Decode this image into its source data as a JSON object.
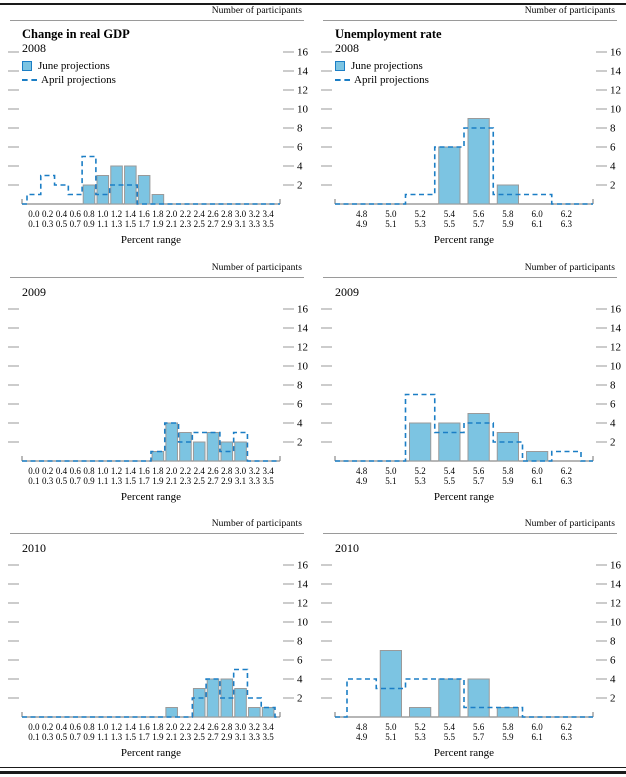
{
  "colors": {
    "bar_fill": "#7cc4e2",
    "bar_stroke": "#9a9a9a",
    "april_blue": "#1b7ec5",
    "axis_gray": "#8a8a8a",
    "tick_gray": "#999999"
  },
  "chart_data": [
    {
      "type": "bar",
      "id": "gdp-2008",
      "title": "Change in real GDP",
      "year": "2008",
      "top_label": "Number of participants",
      "xlabel": "Percent range",
      "legend": [
        "June projections",
        "April projections"
      ],
      "ylim": [
        0,
        17
      ],
      "yticks": [
        2,
        4,
        6,
        8,
        10,
        12,
        14,
        16
      ],
      "bins_top": [
        "0.0",
        "0.2",
        "0.4",
        "0.6",
        "0.8",
        "1.0",
        "1.2",
        "1.4",
        "1.6",
        "1.8",
        "2.0",
        "2.2",
        "2.4",
        "2.6",
        "2.8",
        "3.0",
        "3.2",
        "3.4"
      ],
      "bins_bottom": [
        "0.1",
        "0.3",
        "0.5",
        "0.7",
        "0.9",
        "1.1",
        "1.3",
        "1.5",
        "1.7",
        "1.9",
        "2.1",
        "2.3",
        "2.5",
        "2.7",
        "2.9",
        "3.1",
        "3.3",
        "3.5"
      ],
      "series": [
        {
          "name": "June projections",
          "style": "bar",
          "values": [
            0,
            0,
            0,
            0,
            2,
            3,
            4,
            4,
            3,
            1,
            0,
            0,
            0,
            0,
            0,
            0,
            0,
            0
          ]
        },
        {
          "name": "April projections",
          "style": "dashed-step",
          "values": [
            1,
            3,
            2,
            1,
            5,
            1,
            2,
            2,
            0,
            0,
            0,
            0,
            0,
            0,
            0,
            0,
            0,
            0
          ]
        }
      ]
    },
    {
      "type": "bar",
      "id": "unemployment-2008",
      "title": "Unemployment rate",
      "year": "2008",
      "top_label": "Number of participants",
      "xlabel": "Percent range",
      "legend": [
        "June projections",
        "April projections"
      ],
      "ylim": [
        0,
        17
      ],
      "yticks": [
        2,
        4,
        6,
        8,
        10,
        12,
        14,
        16
      ],
      "bins_top": [
        "4.8",
        "5.0",
        "5.2",
        "5.4",
        "5.6",
        "5.8",
        "6.0",
        "6.2"
      ],
      "bins_bottom": [
        "4.9",
        "5.1",
        "5.3",
        "5.5",
        "5.7",
        "5.9",
        "6.1",
        "6.3"
      ],
      "series": [
        {
          "name": "June projections",
          "style": "bar",
          "values": [
            0,
            0,
            0,
            6,
            9,
            2,
            0,
            0
          ]
        },
        {
          "name": "April projections",
          "style": "dashed-step",
          "values": [
            0,
            0,
            1,
            6,
            8,
            1,
            1,
            0
          ]
        }
      ]
    },
    {
      "type": "bar",
      "id": "gdp-2009",
      "title": "",
      "year": "2009",
      "top_label": "Number of participants",
      "xlabel": "Percent range",
      "legend": [],
      "ylim": [
        0,
        17
      ],
      "yticks": [
        2,
        4,
        6,
        8,
        10,
        12,
        14,
        16
      ],
      "bins_top": [
        "0.0",
        "0.2",
        "0.4",
        "0.6",
        "0.8",
        "1.0",
        "1.2",
        "1.4",
        "1.6",
        "1.8",
        "2.0",
        "2.2",
        "2.4",
        "2.6",
        "2.8",
        "3.0",
        "3.2",
        "3.4"
      ],
      "bins_bottom": [
        "0.1",
        "0.3",
        "0.5",
        "0.7",
        "0.9",
        "1.1",
        "1.3",
        "1.5",
        "1.7",
        "1.9",
        "2.1",
        "2.3",
        "2.5",
        "2.7",
        "2.9",
        "3.1",
        "3.3",
        "3.5"
      ],
      "series": [
        {
          "name": "June projections",
          "style": "bar",
          "values": [
            0,
            0,
            0,
            0,
            0,
            0,
            0,
            0,
            0,
            1,
            4,
            3,
            2,
            3,
            2,
            2,
            0,
            0
          ]
        },
        {
          "name": "April projections",
          "style": "dashed-step",
          "values": [
            0,
            0,
            0,
            0,
            0,
            0,
            0,
            0,
            0,
            1,
            4,
            2,
            3,
            3,
            1,
            3,
            0,
            0
          ]
        }
      ]
    },
    {
      "type": "bar",
      "id": "unemployment-2009",
      "title": "",
      "year": "2009",
      "top_label": "Number of participants",
      "xlabel": "Percent range",
      "legend": [],
      "ylim": [
        0,
        17
      ],
      "yticks": [
        2,
        4,
        6,
        8,
        10,
        12,
        14,
        16
      ],
      "bins_top": [
        "4.8",
        "5.0",
        "5.2",
        "5.4",
        "5.6",
        "5.8",
        "6.0",
        "6.2"
      ],
      "bins_bottom": [
        "4.9",
        "5.1",
        "5.3",
        "5.5",
        "5.7",
        "5.9",
        "6.1",
        "6.3"
      ],
      "series": [
        {
          "name": "June projections",
          "style": "bar",
          "values": [
            0,
            0,
            4,
            4,
            5,
            3,
            1,
            0
          ]
        },
        {
          "name": "April projections",
          "style": "dashed-step",
          "values": [
            0,
            0,
            7,
            3,
            4,
            2,
            0,
            1
          ]
        }
      ]
    },
    {
      "type": "bar",
      "id": "gdp-2010",
      "title": "",
      "year": "2010",
      "top_label": "Number of participants",
      "xlabel": "Percent range",
      "legend": [],
      "ylim": [
        0,
        17
      ],
      "yticks": [
        2,
        4,
        6,
        8,
        10,
        12,
        14,
        16
      ],
      "bins_top": [
        "0.0",
        "0.2",
        "0.4",
        "0.6",
        "0.8",
        "1.0",
        "1.2",
        "1.4",
        "1.6",
        "1.8",
        "2.0",
        "2.2",
        "2.4",
        "2.6",
        "2.8",
        "3.0",
        "3.2",
        "3.4"
      ],
      "bins_bottom": [
        "0.1",
        "0.3",
        "0.5",
        "0.7",
        "0.9",
        "1.1",
        "1.3",
        "1.5",
        "1.7",
        "1.9",
        "2.1",
        "2.3",
        "2.5",
        "2.7",
        "2.9",
        "3.1",
        "3.3",
        "3.5"
      ],
      "series": [
        {
          "name": "June projections",
          "style": "bar",
          "values": [
            0,
            0,
            0,
            0,
            0,
            0,
            0,
            0,
            0,
            0,
            1,
            0,
            3,
            4,
            4,
            3,
            1,
            1
          ]
        },
        {
          "name": "April projections",
          "style": "dashed-step",
          "values": [
            0,
            0,
            0,
            0,
            0,
            0,
            0,
            0,
            0,
            0,
            0,
            0,
            2,
            4,
            2,
            5,
            2,
            1
          ]
        }
      ]
    },
    {
      "type": "bar",
      "id": "unemployment-2010",
      "title": "",
      "year": "2010",
      "top_label": "Number of participants",
      "xlabel": "Percent range",
      "legend": [],
      "ylim": [
        0,
        17
      ],
      "yticks": [
        2,
        4,
        6,
        8,
        10,
        12,
        14,
        16
      ],
      "bins_top": [
        "4.8",
        "5.0",
        "5.2",
        "5.4",
        "5.6",
        "5.8",
        "6.0",
        "6.2"
      ],
      "bins_bottom": [
        "4.9",
        "5.1",
        "5.3",
        "5.5",
        "5.7",
        "5.9",
        "6.1",
        "6.3"
      ],
      "series": [
        {
          "name": "June projections",
          "style": "bar",
          "values": [
            0,
            7,
            1,
            4,
            4,
            1,
            0,
            0
          ]
        },
        {
          "name": "April projections",
          "style": "dashed-step",
          "values": [
            4,
            3,
            4,
            4,
            1,
            1,
            0,
            0
          ]
        }
      ]
    }
  ]
}
